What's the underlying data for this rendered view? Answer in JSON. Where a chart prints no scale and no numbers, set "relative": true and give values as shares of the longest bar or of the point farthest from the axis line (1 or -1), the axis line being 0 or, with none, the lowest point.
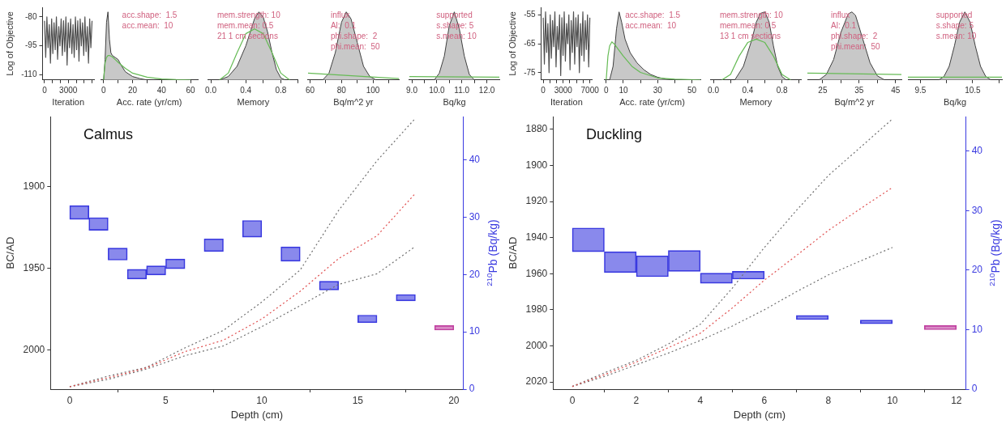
{
  "chart_data": [
    {
      "type": "line",
      "ylabel": "Log of Objective",
      "xlabel": "Iteration",
      "xlim": [
        -250,
        6250
      ],
      "xticks": [
        0,
        {
          "value": 1000,
          "label": null
        },
        {
          "value": 2000,
          "label": null
        },
        3000,
        {
          "value": 4000,
          "label": null
        },
        {
          "value": 5000,
          "label": null
        },
        {
          "value": 6000,
          "label": null
        }
      ],
      "ylim": [
        -112.7,
        -75
      ],
      "yticks": [
        -80,
        -95,
        -110
      ],
      "series": [
        {
          "color": "#505050",
          "x": [
            0,
            150,
            300,
            450,
            600,
            750,
            900,
            1050,
            1200,
            1350,
            1500,
            1650,
            1800,
            1950,
            2100,
            2250,
            2400,
            2550,
            2700,
            2850,
            3000,
            3150,
            3300,
            3450,
            3600,
            3750,
            3900,
            4050,
            4200,
            4350,
            4500,
            4650,
            4800,
            4950,
            5100,
            5250,
            5400,
            5550,
            5700,
            5850,
            6000
          ],
          "values": [
            -82,
            -101,
            -80,
            -96,
            -84,
            -104,
            -81,
            -99,
            -83,
            -97,
            -80,
            -102,
            -85,
            -95,
            -81,
            -100,
            -82,
            -98,
            -80,
            -105,
            -83,
            -96,
            -81,
            -99,
            -84,
            -101,
            -80,
            -97,
            -82,
            -103,
            -81,
            -95,
            -83,
            -100,
            -80,
            -98,
            -85,
            -104,
            -81,
            -96,
            -82
          ]
        }
      ]
    },
    {
      "type": "area",
      "relative": true,
      "xlabel": "Acc. rate (yr/cm)",
      "xlim": [
        -2,
        65
      ],
      "xticks": [
        0,
        {
          "value": 10,
          "label": null
        },
        20,
        {
          "value": 30,
          "label": null
        },
        40,
        {
          "value": 50,
          "label": null
        },
        60
      ],
      "annotations": [
        "acc.shape:  1.5",
        "acc.mean:  10"
      ],
      "series": [
        {
          "color": "#c8c8c8",
          "x": [
            0,
            1,
            2,
            3,
            4,
            5,
            6,
            8,
            10,
            12,
            15,
            20,
            25,
            30
          ],
          "values": [
            0,
            0.3,
            0.85,
            1,
            0.6,
            0.4,
            0.36,
            0.33,
            0.3,
            0.22,
            0.12,
            0.05,
            0.02,
            0
          ]
        },
        {
          "type": "line",
          "color": "#66bb55",
          "x": [
            0,
            1,
            2,
            3,
            4,
            6,
            8,
            10,
            15,
            20,
            30,
            40,
            50,
            60
          ],
          "values": [
            0,
            0.25,
            0.33,
            0.36,
            0.36,
            0.34,
            0.3,
            0.26,
            0.17,
            0.1,
            0.04,
            0.015,
            0.005,
            0
          ]
        }
      ]
    },
    {
      "type": "area",
      "relative": true,
      "xlabel": "Memory",
      "xlim": [
        -0.03,
        1.0
      ],
      "xticks": [
        {
          "value": 0,
          "label": "0.0"
        },
        {
          "value": 0.2,
          "label": null
        },
        0.4,
        {
          "value": 0.6,
          "label": null
        },
        0.8,
        {
          "value": 1,
          "label": null
        }
      ],
      "annotations": [
        "mem.strength: 10",
        "mem.mean: 0.5",
        "21 1 cm sections"
      ],
      "series": [
        {
          "color": "#c8c8c8",
          "x": [
            0.1,
            0.2,
            0.3,
            0.4,
            0.45,
            0.5,
            0.55,
            0.6,
            0.65,
            0.7,
            0.75,
            0.8,
            0.85
          ],
          "values": [
            0,
            0.05,
            0.2,
            0.5,
            0.7,
            0.9,
            1,
            0.92,
            0.7,
            0.4,
            0.15,
            0.03,
            0
          ]
        },
        {
          "type": "line",
          "color": "#66bb55",
          "x": [
            0.1,
            0.2,
            0.3,
            0.4,
            0.5,
            0.6,
            0.7,
            0.8,
            0.9
          ],
          "values": [
            0,
            0.1,
            0.4,
            0.68,
            0.75,
            0.68,
            0.4,
            0.1,
            0
          ]
        }
      ]
    },
    {
      "type": "area",
      "relative": true,
      "xlabel": "Bq/m^2 yr",
      "xlim": [
        58.6,
        116.5
      ],
      "xticks": [
        60,
        {
          "value": 70,
          "label": null
        },
        80,
        {
          "value": 90,
          "label": null
        },
        100,
        {
          "value": 110,
          "label": null
        }
      ],
      "annotations": [
        "influx",
        "Al:  0.1",
        "phi.shape:  2",
        "phi.mean:  50"
      ],
      "series": [
        {
          "color": "#c8c8c8",
          "x": [
            68,
            72,
            76,
            80,
            83,
            86,
            90,
            94,
            98,
            102
          ],
          "values": [
            0,
            0.1,
            0.4,
            0.85,
            1,
            0.9,
            0.55,
            0.2,
            0.05,
            0
          ]
        },
        {
          "type": "line",
          "color": "#66bb55",
          "x": [
            58.6,
            116.5
          ],
          "values": [
            0.1,
            0.02
          ]
        }
      ]
    },
    {
      "type": "area",
      "relative": true,
      "xlabel": "Bq/kg",
      "xlim": [
        8.9,
        12.5
      ],
      "xticks": [
        {
          "value": 9,
          "label": "9.0"
        },
        {
          "value": 9.5,
          "label": null
        },
        {
          "value": 10,
          "label": "10.0"
        },
        {
          "value": 10.5,
          "label": null
        },
        {
          "value": 11,
          "label": "11.0"
        },
        {
          "value": 11.5,
          "label": null
        },
        {
          "value": 12,
          "label": "12.0"
        }
      ],
      "annotations": [
        "supported",
        "s.shape: 5",
        "s.mean: 10"
      ],
      "series": [
        {
          "color": "#c8c8c8",
          "x": [
            9.9,
            10.1,
            10.3,
            10.5,
            10.7,
            10.9,
            11.1,
            11.3,
            11.5
          ],
          "values": [
            0,
            0.1,
            0.35,
            0.8,
            1,
            0.75,
            0.35,
            0.08,
            0
          ]
        },
        {
          "type": "line",
          "color": "#66bb55",
          "x": [
            8.9,
            12.5
          ],
          "values": [
            0.05,
            0.04
          ]
        }
      ]
    },
    {
      "type": "line",
      "ylabel": "Log of Objective",
      "xlabel": "Iteration",
      "xlim": [
        -300,
        7300
      ],
      "xticks": [
        0,
        {
          "value": 1000,
          "label": null
        },
        {
          "value": 2000,
          "label": null
        },
        3000,
        {
          "value": 4000,
          "label": null
        },
        {
          "value": 5000,
          "label": null
        },
        {
          "value": 6000,
          "label": null
        },
        7000
      ],
      "ylim": [
        -77.5,
        -52.4
      ],
      "yticks": [
        -55,
        -65,
        -75
      ],
      "series": [
        {
          "color": "#505050",
          "x": [
            0,
            175,
            350,
            525,
            700,
            875,
            1050,
            1225,
            1400,
            1575,
            1750,
            1925,
            2100,
            2275,
            2450,
            2625,
            2800,
            2975,
            3150,
            3325,
            3500,
            3675,
            3850,
            4025,
            4200,
            4375,
            4550,
            4725,
            4900,
            5075,
            5250,
            5425,
            5600,
            5775,
            5950,
            6125,
            6300,
            6475,
            6650,
            6825,
            7000
          ],
          "values": [
            -56,
            -72,
            -54,
            -68,
            -58,
            -75,
            -55,
            -70,
            -57,
            -66,
            -54,
            -73,
            -59,
            -67,
            -55,
            -76,
            -56,
            -69,
            -54,
            -71,
            -58,
            -65,
            -55,
            -74,
            -57,
            -68,
            -54,
            -72,
            -56,
            -66,
            -55,
            -75,
            -58,
            -69,
            -54,
            -71,
            -57,
            -67,
            -55,
            -73,
            -56
          ]
        }
      ]
    },
    {
      "type": "area",
      "relative": true,
      "xlabel": "Acc. rate (yr/cm)",
      "xlim": [
        -1.3,
        55
      ],
      "xticks": [
        0,
        10,
        {
          "value": 20,
          "label": null
        },
        30,
        {
          "value": 40,
          "label": null
        },
        50
      ],
      "annotations": [
        "acc.shape:  1.5",
        "acc.mean:  10"
      ],
      "series": [
        {
          "color": "#c8c8c8",
          "x": [
            2,
            4,
            6,
            7.5,
            9,
            11,
            14,
            18,
            22,
            26,
            30,
            35,
            40
          ],
          "values": [
            0,
            0.2,
            0.75,
            1,
            0.85,
            0.6,
            0.4,
            0.25,
            0.15,
            0.08,
            0.04,
            0.01,
            0
          ]
        },
        {
          "type": "line",
          "color": "#66bb55",
          "x": [
            0,
            1,
            2,
            3.3,
            5,
            7,
            10,
            15,
            20,
            30,
            40,
            55
          ],
          "values": [
            0,
            0.35,
            0.5,
            0.56,
            0.52,
            0.45,
            0.35,
            0.2,
            0.11,
            0.03,
            0.01,
            0
          ]
        }
      ]
    },
    {
      "type": "area",
      "relative": true,
      "xlabel": "Memory",
      "xlim": [
        -0.03,
        1.02
      ],
      "xticks": [
        {
          "value": 0,
          "label": "0.0"
        },
        {
          "value": 0.2,
          "label": null
        },
        0.4,
        {
          "value": 0.6,
          "label": null
        },
        0.8,
        {
          "value": 1,
          "label": null
        }
      ],
      "annotations": [
        "mem.strength: 10",
        "mem.mean: 0.5",
        "13 1 cm sections"
      ],
      "series": [
        {
          "color": "#c8c8c8",
          "x": [
            0.25,
            0.35,
            0.45,
            0.5,
            0.55,
            0.6,
            0.65,
            0.7,
            0.75,
            0.8,
            0.85
          ],
          "values": [
            0,
            0.2,
            0.6,
            0.85,
            0.98,
            1,
            0.85,
            0.5,
            0.2,
            0.05,
            0
          ]
        },
        {
          "type": "line",
          "color": "#66bb55",
          "x": [
            0.1,
            0.2,
            0.3,
            0.4,
            0.5,
            0.6,
            0.7,
            0.8,
            0.9
          ],
          "values": [
            0,
            0.08,
            0.35,
            0.55,
            0.6,
            0.55,
            0.35,
            0.08,
            0
          ]
        }
      ]
    },
    {
      "type": "area",
      "relative": true,
      "xlabel": "Bq/m^2 yr",
      "xlim": [
        20.8,
        46.6
      ],
      "xticks": [
        25,
        {
          "value": 30,
          "label": null
        },
        35,
        {
          "value": 40,
          "label": null
        },
        45
      ],
      "annotations": [
        "influx",
        "Al:  0.1",
        "phi.shape:  2",
        "phi.mean:  50"
      ],
      "series": [
        {
          "color": "#c8c8c8",
          "x": [
            24,
            26,
            28,
            30,
            32,
            33,
            34,
            36,
            38,
            40,
            42
          ],
          "values": [
            0,
            0.08,
            0.3,
            0.7,
            0.97,
            1,
            0.95,
            0.6,
            0.25,
            0.06,
            0
          ]
        },
        {
          "type": "line",
          "color": "#66bb55",
          "x": [
            20.8,
            46.6
          ],
          "values": [
            0.1,
            0.08
          ]
        }
      ]
    },
    {
      "type": "area",
      "relative": true,
      "xlabel": "Bq/kg",
      "xlim": [
        9.26,
        11.06
      ],
      "xticks": [
        9.5,
        {
          "value": 10,
          "label": null
        },
        10.5,
        {
          "value": 11,
          "label": null
        }
      ],
      "annotations": [
        "supported",
        "s.shape: 5",
        "s.mean: 10"
      ],
      "series": [
        {
          "color": "#c8c8c8",
          "x": [
            9.85,
            9.95,
            10.05,
            10.15,
            10.25,
            10.35,
            10.45,
            10.55,
            10.65,
            10.75,
            10.85
          ],
          "values": [
            0,
            0.05,
            0.2,
            0.5,
            0.85,
            1,
            0.85,
            0.5,
            0.2,
            0.05,
            0
          ]
        },
        {
          "type": "line",
          "color": "#66bb55",
          "x": [
            9.26,
            11.06
          ],
          "values": [
            0.04,
            0.04
          ]
        }
      ]
    },
    {
      "type": "line",
      "title": "Calmus",
      "xlabel": "Depth (cm)",
      "ylabel": "BC/AD",
      "y2label": "$^{210}$Pb (Bq/kg)",
      "xlim": [
        -1,
        20.5
      ],
      "xticks": [
        0,
        5,
        10,
        15,
        20
      ],
      "ylim": [
        2024,
        1857
      ],
      "yticks": [
        1900,
        1950,
        2000
      ],
      "y2lim": [
        0,
        47.5
      ],
      "y2ticks": [
        0,
        10,
        20,
        30,
        40
      ],
      "series": [
        {
          "color": "#e05050",
          "line_style": "dotted",
          "x": [
            0,
            2,
            4,
            6,
            8,
            10,
            12,
            14,
            16,
            18
          ],
          "values": [
            2022.5,
            2017,
            2011,
            2001,
            1994,
            1981,
            1964,
            1944,
            1930,
            1904
          ]
        },
        {
          "color": "#707070",
          "line_style": "dotted",
          "x": [
            0,
            2,
            4,
            6,
            8,
            10,
            12,
            14,
            16,
            18
          ],
          "values": [
            2022.5,
            2016,
            2010.6,
            1998.7,
            1988,
            1970.6,
            1951,
            1914.5,
            1884,
            1858
          ]
        },
        {
          "color": "#707070",
          "line_style": "dotted",
          "x": [
            0,
            2,
            4,
            6,
            8,
            10,
            12,
            14,
            16,
            18
          ],
          "values": [
            2022.5,
            2018,
            2011.7,
            2003.5,
            1997.5,
            1985.7,
            1972.8,
            1959.8,
            1953.3,
            1936.5
          ]
        },
        {
          "type": "bar",
          "axis": "y2",
          "x": [
            0.5,
            1.5,
            2.5,
            3.5,
            4.5,
            5.5,
            7.5,
            9.5,
            11.5,
            13.5,
            15.5,
            17.5,
            19.5
          ],
          "base": [
            29.6,
            27.7,
            22.5,
            19.2,
            19.9,
            21.0,
            24.0,
            26.5,
            22.3,
            17.3,
            11.6,
            15.4,
            10.3
          ],
          "values": [
            2.4,
            2.2,
            2.1,
            1.7,
            1.6,
            1.7,
            2.2,
            2.9,
            2.5,
            1.5,
            1.3,
            1.1,
            0.8
          ],
          "colors": [
            "#3a3ae0",
            "#3a3ae0",
            "#3a3ae0",
            "#3a3ae0",
            "#3a3ae0",
            "#3a3ae0",
            "#3a3ae0",
            "#3a3ae0",
            "#3a3ae0",
            "#3a3ae0",
            "#3a3ae0",
            "#3a3ae0",
            "#c040a0"
          ]
        }
      ]
    },
    {
      "type": "line",
      "title": "Duckling",
      "xlabel": "Depth (cm)",
      "ylabel": "BC/AD",
      "y2label": "$^{210}$Pb (Bq/kg)",
      "xlim": [
        -0.6,
        12.3
      ],
      "xticks": [
        0,
        2,
        4,
        6,
        8,
        10,
        12
      ],
      "ylim": [
        2024,
        1873
      ],
      "yticks": [
        1880,
        1900,
        1920,
        1940,
        1960,
        1980,
        2000,
        2020
      ],
      "y2lim": [
        0,
        45.8
      ],
      "y2ticks": [
        0,
        10,
        20,
        30,
        40
      ],
      "series": [
        {
          "color": "#e05050",
          "line_style": "dotted",
          "x": [
            0,
            1,
            2,
            3,
            4,
            5,
            6,
            7,
            8,
            9,
            10
          ],
          "values": [
            2022.5,
            2016,
            2009,
            2001,
            1993,
            1979,
            1963.6,
            1950,
            1936,
            1924,
            1912.3
          ]
        },
        {
          "color": "#707070",
          "line_style": "dotted",
          "x": [
            0,
            1,
            2,
            3,
            4,
            5,
            6,
            7,
            8,
            9,
            10
          ],
          "values": [
            2022.5,
            2015,
            2008,
            1999,
            1988,
            1968,
            1945.5,
            1925,
            1905.6,
            1890,
            1874.3
          ]
        },
        {
          "color": "#707070",
          "line_style": "dotted",
          "x": [
            0,
            1,
            2,
            3,
            4,
            5,
            6,
            7,
            8,
            9,
            10
          ],
          "values": [
            2022.5,
            2017,
            2010.5,
            2004,
            1997,
            1989,
            1980,
            1970,
            1960.7,
            1953,
            1945.5
          ]
        },
        {
          "type": "bar",
          "axis": "y2",
          "x": [
            0.5,
            1.5,
            2.5,
            3.5,
            4.5,
            5.5,
            7.5,
            9.5,
            11.5
          ],
          "base": [
            23.1,
            19.6,
            18.9,
            19.8,
            17.8,
            18.5,
            11.7,
            11.0,
            10.0
          ],
          "values": [
            4.0,
            3.5,
            3.5,
            3.5,
            1.7,
            1.3,
            0.7,
            0.6,
            0.7
          ],
          "colors": [
            "#3a3ae0",
            "#3a3ae0",
            "#3a3ae0",
            "#3a3ae0",
            "#3a3ae0",
            "#3a3ae0",
            "#3a3ae0",
            "#3a3ae0",
            "#c040a0"
          ]
        }
      ]
    }
  ]
}
